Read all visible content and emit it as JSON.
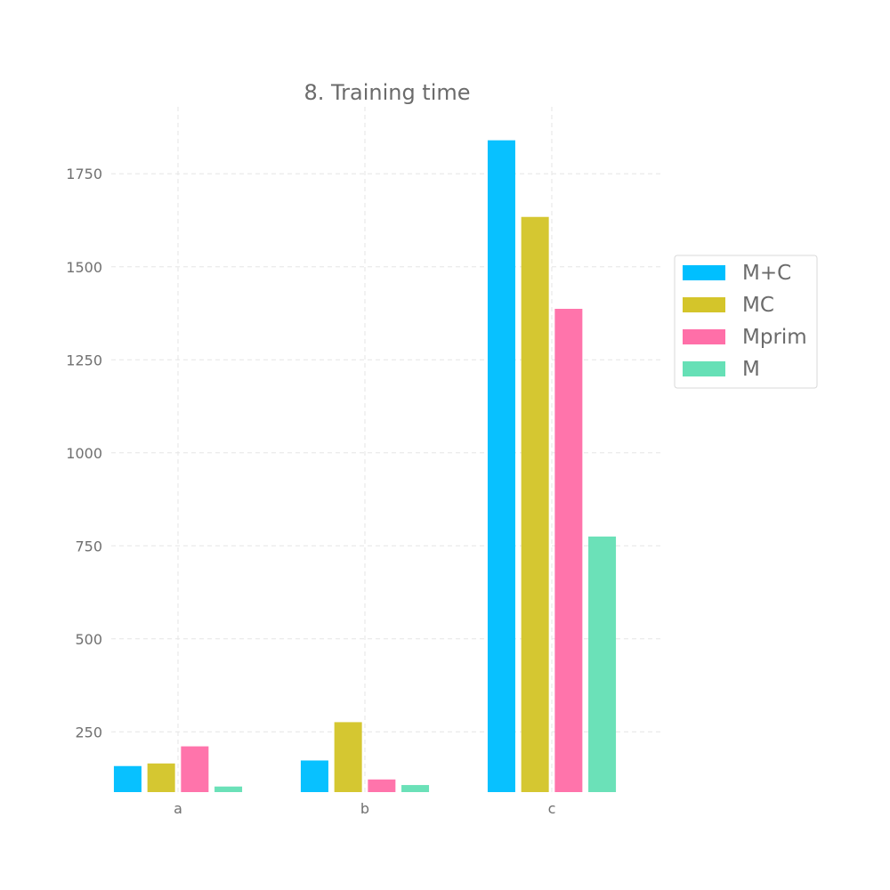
{
  "chart_data": {
    "type": "bar",
    "title": "8. Training time",
    "xlabel": "",
    "ylabel": "",
    "categories": [
      "a",
      "b",
      "c"
    ],
    "series": [
      {
        "name": "M+C",
        "color": "#00bfff",
        "values": [
          158,
          173,
          1840
        ]
      },
      {
        "name": "MC",
        "color": "#d4c52a",
        "values": [
          165,
          276,
          1634
        ]
      },
      {
        "name": "Mprim",
        "color": "#ff6fa8",
        "values": [
          211,
          122,
          1387
        ]
      },
      {
        "name": "M",
        "color": "#66e0b6",
        "values": [
          103,
          107,
          775
        ]
      }
    ],
    "yticks": [
      250,
      500,
      750,
      1000,
      1250,
      1500,
      1750
    ],
    "ylim": [
      88,
      1930
    ],
    "grid": true,
    "legend": "right"
  }
}
